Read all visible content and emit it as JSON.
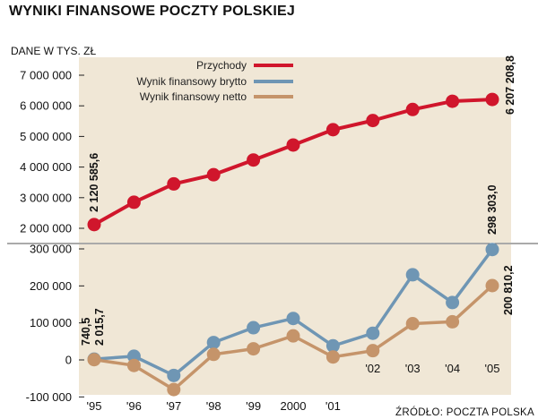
{
  "title": "WYNIKI FINANSOWE POCZTY POLSKIEJ",
  "unit_label": "DANE W TYS. ZŁ",
  "source": "ŹRÓDŁO: POCZTA POLSKA",
  "colors": {
    "revenue": "#d0162c",
    "gross": "#6f96b4",
    "net": "#c5946a",
    "panel": "#f0e7d6"
  },
  "legend": [
    {
      "name": "Przychody",
      "series": "revenue"
    },
    {
      "name": "Wynik finansowy brytto",
      "series": "gross"
    },
    {
      "name": "Wynik finansowy netto",
      "series": "net"
    }
  ],
  "chart_data": [
    {
      "type": "line",
      "categories": [
        "'95",
        "'96",
        "'97",
        "'98",
        "'99",
        "2000",
        "'01",
        "'02",
        "'03",
        "'04",
        "'05"
      ],
      "ylim": [
        1800000,
        7300000
      ],
      "yticks": [
        2000000,
        3000000,
        4000000,
        5000000,
        6000000,
        7000000
      ],
      "ytick_labels": [
        "2 000 000",
        "3 000 000",
        "4 000 000",
        "5 000 000",
        "6 000 000",
        "7 000 000"
      ],
      "grid": false,
      "series": [
        {
          "name": "Przychody",
          "color_key": "revenue",
          "values": [
            2120585.6,
            2850000,
            3450000,
            3750000,
            4230000,
            4720000,
            5220000,
            5520000,
            5880000,
            6150000,
            6207208.8
          ]
        }
      ],
      "annotations": [
        {
          "text": "2 120 585,6",
          "series": 0,
          "index": 0,
          "side": "above"
        },
        {
          "text": "6 207 208,8",
          "series": 0,
          "index": 10,
          "side": "below"
        }
      ]
    },
    {
      "type": "line",
      "categories": [
        "'95",
        "'96",
        "'97",
        "'98",
        "'99",
        "2000",
        "'01",
        "'02",
        "'03",
        "'04",
        "'05"
      ],
      "ylim": [
        -110000,
        305000
      ],
      "yticks": [
        -100000,
        0,
        100000,
        200000,
        300000
      ],
      "ytick_labels": [
        "-100 000",
        "0",
        "100 000",
        "200 000",
        "300 000"
      ],
      "grid": false,
      "series": [
        {
          "name": "Wynik finansowy brytto",
          "color_key": "gross",
          "values": [
            2015.7,
            10000,
            -42000,
            47000,
            87000,
            112000,
            38000,
            72000,
            230000,
            155000,
            298303.0
          ]
        },
        {
          "name": "Wynik finansowy netto",
          "color_key": "net",
          "values": [
            740.5,
            -15000,
            -80000,
            15000,
            30000,
            65000,
            8000,
            25000,
            98000,
            103000,
            200810.2
          ]
        }
      ],
      "annotations": [
        {
          "text": "740,5",
          "series": 1,
          "index": 0,
          "side": "above"
        },
        {
          "text": "2 015,7",
          "series": 0,
          "index": 0,
          "side": "above"
        },
        {
          "text": "298 303,0",
          "series": 0,
          "index": 10,
          "side": "above"
        },
        {
          "text": "200 810,2",
          "series": 1,
          "index": 10,
          "side": "above"
        }
      ]
    }
  ]
}
